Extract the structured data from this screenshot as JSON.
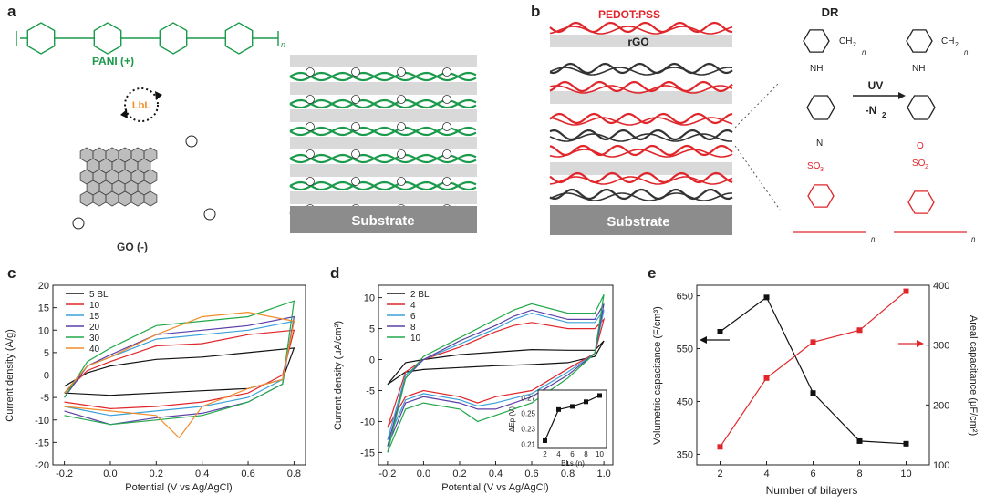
{
  "panels": {
    "a": {
      "letter": "a",
      "pani_label": "PANI (+)",
      "lbl_label": "LbL",
      "go_label": "GO (-)",
      "n_sub": "n",
      "substrate": "Substrate",
      "colors": {
        "pani": "#1a9a4a",
        "go": "#555555",
        "lbl": "#f28c28",
        "sheet": "#d9d9d9",
        "substrate": "#8c8c8c"
      }
    },
    "b": {
      "letter": "b",
      "pedot_label": "PEDOT:PSS",
      "rgo_label": "rGO",
      "dr_label": "DR",
      "nh_label": "NH",
      "uv_label": "UV",
      "n2_label": "-N",
      "n2_sub": "2",
      "o_label": "O",
      "so3_label": "SO",
      "so3_sub": "3",
      "so2_label": "SO",
      "so2_sub": "2",
      "ch2_label": "CH",
      "ch2_sub": "2",
      "n_sub": "n",
      "diazo_label": "N",
      "substrate": "Substrate",
      "colors": {
        "pedot": "#e0262b",
        "dr": "#333333",
        "sheet": "#d9d9d9",
        "substrate": "#8c8c8c"
      }
    }
  },
  "chart_data": [
    {
      "panel": "c",
      "type": "line",
      "xlabel": "Potential (V vs Ag/AgCl)",
      "ylabel": "Current density (A/g)",
      "xlim": [
        -0.25,
        0.85
      ],
      "ylim": [
        -20,
        20
      ],
      "xticks": [
        "-0.2",
        "0.0",
        "0.2",
        "0.4",
        "0.6",
        "0.8"
      ],
      "yticks": [
        "-20",
        "-15",
        "-10",
        "-5",
        "0",
        "5",
        "10",
        "15",
        "20"
      ],
      "legend_position": "top-left",
      "series": [
        {
          "name": "5 BL",
          "color": "#111111",
          "upper": [
            [
              -0.2,
              -2.5
            ],
            [
              -0.1,
              0.5
            ],
            [
              0.0,
              2
            ],
            [
              0.2,
              3.5
            ],
            [
              0.4,
              4
            ],
            [
              0.6,
              5
            ],
            [
              0.8,
              6
            ]
          ],
          "lower": [
            [
              0.8,
              6
            ],
            [
              0.75,
              -1
            ],
            [
              0.6,
              -3
            ],
            [
              0.4,
              -3.5
            ],
            [
              0.2,
              -4
            ],
            [
              0.0,
              -4.5
            ],
            [
              -0.2,
              -4
            ]
          ]
        },
        {
          "name": "10",
          "color": "#e0262b",
          "upper": [
            [
              -0.2,
              -4
            ],
            [
              -0.1,
              1
            ],
            [
              0.0,
              3
            ],
            [
              0.2,
              6.5
            ],
            [
              0.4,
              7
            ],
            [
              0.6,
              9
            ],
            [
              0.8,
              10
            ]
          ],
          "lower": [
            [
              0.8,
              10
            ],
            [
              0.75,
              0
            ],
            [
              0.6,
              -4
            ],
            [
              0.4,
              -6
            ],
            [
              0.2,
              -7
            ],
            [
              0.0,
              -7.5
            ],
            [
              -0.2,
              -6
            ]
          ]
        },
        {
          "name": "15",
          "color": "#3aa0d8",
          "upper": [
            [
              -0.2,
              -4
            ],
            [
              -0.1,
              2
            ],
            [
              0.0,
              4
            ],
            [
              0.2,
              8
            ],
            [
              0.4,
              9
            ],
            [
              0.6,
              10
            ],
            [
              0.8,
              12
            ]
          ],
          "lower": [
            [
              0.8,
              12
            ],
            [
              0.75,
              -1
            ],
            [
              0.6,
              -5
            ],
            [
              0.4,
              -7
            ],
            [
              0.2,
              -8
            ],
            [
              0.0,
              -9
            ],
            [
              -0.2,
              -7
            ]
          ]
        },
        {
          "name": "20",
          "color": "#5b3fa8",
          "upper": [
            [
              -0.2,
              -5
            ],
            [
              -0.1,
              2
            ],
            [
              0.0,
              4.5
            ],
            [
              0.2,
              9
            ],
            [
              0.4,
              10
            ],
            [
              0.6,
              11
            ],
            [
              0.8,
              13
            ]
          ],
          "lower": [
            [
              0.8,
              13
            ],
            [
              0.75,
              -2
            ],
            [
              0.6,
              -6
            ],
            [
              0.4,
              -8.5
            ],
            [
              0.2,
              -9.5
            ],
            [
              0.0,
              -11
            ],
            [
              -0.2,
              -8
            ]
          ]
        },
        {
          "name": "30",
          "color": "#22a84a",
          "upper": [
            [
              -0.2,
              -5
            ],
            [
              -0.1,
              3
            ],
            [
              0.0,
              6
            ],
            [
              0.2,
              11
            ],
            [
              0.4,
              12
            ],
            [
              0.6,
              13
            ],
            [
              0.8,
              16.5
            ]
          ],
          "lower": [
            [
              0.8,
              16.5
            ],
            [
              0.75,
              -2
            ],
            [
              0.6,
              -6
            ],
            [
              0.4,
              -9
            ],
            [
              0.2,
              -10
            ],
            [
              0.0,
              -11
            ],
            [
              -0.2,
              -9
            ]
          ]
        },
        {
          "name": "40",
          "color": "#f28c28",
          "upper": [
            [
              -0.2,
              -4
            ],
            [
              -0.1,
              2
            ],
            [
              0.0,
              4
            ],
            [
              0.2,
              9
            ],
            [
              0.4,
              13
            ],
            [
              0.6,
              14
            ],
            [
              0.8,
              12
            ]
          ],
          "lower": [
            [
              0.8,
              12
            ],
            [
              0.75,
              -1
            ],
            [
              0.6,
              -3
            ],
            [
              0.4,
              -7
            ],
            [
              0.3,
              -14
            ],
            [
              0.2,
              -9
            ],
            [
              0.0,
              -8
            ],
            [
              -0.2,
              -7
            ]
          ]
        }
      ]
    },
    {
      "panel": "d",
      "type": "line",
      "xlabel": "Potential (V vs Ag/AgCl)",
      "ylabel": "Current density (μA/cm²)",
      "xlim": [
        -0.25,
        1.05
      ],
      "ylim": [
        -17,
        12
      ],
      "xticks": [
        "-0.2",
        "0.0",
        "0.2",
        "0.4",
        "0.6",
        "0.8",
        "1.0"
      ],
      "yticks": [
        "-15",
        "-10",
        "-5",
        "0",
        "5",
        "10"
      ],
      "legend_position": "top-left",
      "series": [
        {
          "name": "2 BL",
          "color": "#111111",
          "upper": [
            [
              -0.2,
              -4
            ],
            [
              -0.1,
              -0.5
            ],
            [
              0.0,
              0
            ],
            [
              0.2,
              0.8
            ],
            [
              0.4,
              1.2
            ],
            [
              0.6,
              1.6
            ],
            [
              0.8,
              1.5
            ],
            [
              0.95,
              1.5
            ],
            [
              1.0,
              3
            ]
          ],
          "lower": [
            [
              1.0,
              3
            ],
            [
              0.95,
              0.5
            ],
            [
              0.8,
              -0.5
            ],
            [
              0.6,
              -0.8
            ],
            [
              0.4,
              -1
            ],
            [
              0.2,
              -1.3
            ],
            [
              0.0,
              -1.6
            ],
            [
              -0.1,
              -2
            ],
            [
              -0.2,
              -4
            ]
          ]
        },
        {
          "name": "4",
          "color": "#e0262b",
          "upper": [
            [
              -0.2,
              -11
            ],
            [
              -0.1,
              -2
            ],
            [
              0.0,
              0
            ],
            [
              0.2,
              2
            ],
            [
              0.4,
              4.5
            ],
            [
              0.5,
              5.5
            ],
            [
              0.6,
              6
            ],
            [
              0.8,
              5
            ],
            [
              0.95,
              5
            ],
            [
              1.0,
              6.5
            ]
          ],
          "lower": [
            [
              1.0,
              6.5
            ],
            [
              0.95,
              1
            ],
            [
              0.8,
              -1.5
            ],
            [
              0.6,
              -5
            ],
            [
              0.4,
              -6
            ],
            [
              0.3,
              -7
            ],
            [
              0.2,
              -6
            ],
            [
              0.0,
              -5
            ],
            [
              -0.1,
              -6
            ],
            [
              -0.2,
              -11
            ]
          ]
        },
        {
          "name": "6",
          "color": "#3aa0d8",
          "upper": [
            [
              -0.2,
              -13
            ],
            [
              -0.1,
              -2.5
            ],
            [
              0.0,
              0
            ],
            [
              0.2,
              2.5
            ],
            [
              0.4,
              5
            ],
            [
              0.5,
              6.5
            ],
            [
              0.6,
              7.5
            ],
            [
              0.8,
              6
            ],
            [
              0.95,
              6
            ],
            [
              1.0,
              8
            ]
          ],
          "lower": [
            [
              1.0,
              8
            ],
            [
              0.95,
              1
            ],
            [
              0.8,
              -2
            ],
            [
              0.6,
              -5.5
            ],
            [
              0.4,
              -7
            ],
            [
              0.3,
              -7.5
            ],
            [
              0.2,
              -6.5
            ],
            [
              0.0,
              -5.5
            ],
            [
              -0.1,
              -6.5
            ],
            [
              -0.2,
              -13
            ]
          ]
        },
        {
          "name": "8",
          "color": "#5b3fa8",
          "upper": [
            [
              -0.2,
              -14
            ],
            [
              -0.1,
              -3
            ],
            [
              0.0,
              0
            ],
            [
              0.2,
              3
            ],
            [
              0.4,
              5.5
            ],
            [
              0.5,
              7
            ],
            [
              0.6,
              8
            ],
            [
              0.8,
              6.5
            ],
            [
              0.95,
              6.5
            ],
            [
              1.0,
              9
            ]
          ],
          "lower": [
            [
              1.0,
              9
            ],
            [
              0.95,
              1
            ],
            [
              0.8,
              -2.5
            ],
            [
              0.6,
              -6
            ],
            [
              0.4,
              -8
            ],
            [
              0.3,
              -8
            ],
            [
              0.2,
              -7
            ],
            [
              0.0,
              -6
            ],
            [
              -0.1,
              -7
            ],
            [
              -0.2,
              -14
            ]
          ]
        },
        {
          "name": "10",
          "color": "#22a84a",
          "upper": [
            [
              -0.2,
              -15
            ],
            [
              -0.1,
              -3
            ],
            [
              0.0,
              0.5
            ],
            [
              0.2,
              3.5
            ],
            [
              0.4,
              6.5
            ],
            [
              0.5,
              8
            ],
            [
              0.6,
              9
            ],
            [
              0.8,
              7.5
            ],
            [
              0.95,
              7.5
            ],
            [
              1.0,
              10.5
            ]
          ],
          "lower": [
            [
              1.0,
              10.5
            ],
            [
              0.95,
              1
            ],
            [
              0.8,
              -3
            ],
            [
              0.6,
              -7
            ],
            [
              0.4,
              -9
            ],
            [
              0.3,
              -10
            ],
            [
              0.2,
              -8
            ],
            [
              0.0,
              -7
            ],
            [
              -0.1,
              -8
            ],
            [
              -0.2,
              -15
            ]
          ]
        }
      ],
      "inset": {
        "type": "line",
        "xlabel": "BLs (n)",
        "ylabel": "ΔEp (V)",
        "xlim": [
          1,
          11
        ],
        "ylim": [
          0.205,
          0.28
        ],
        "xticks": [
          "2",
          "4",
          "6",
          "8",
          "10"
        ],
        "yticks": [
          "0.21",
          "0.23",
          "0.25",
          "0.27"
        ],
        "x": [
          2,
          4,
          6,
          8,
          10
        ],
        "y": [
          0.215,
          0.255,
          0.259,
          0.265,
          0.273
        ]
      }
    },
    {
      "panel": "e",
      "type": "line",
      "xlabel": "Number of bilayers",
      "ylabel": "Volumetric capacitance (F/cm³)",
      "ylabel_right": "Areal capacitance (μF/cm²)",
      "xlim": [
        1,
        11
      ],
      "ylim": [
        330,
        670
      ],
      "ylim_right": [
        100,
        400
      ],
      "xticks": [
        "2",
        "4",
        "6",
        "8",
        "10"
      ],
      "yticks": [
        "350",
        "450",
        "550",
        "650"
      ],
      "yticks_right": [
        "100",
        "200",
        "300",
        "400"
      ],
      "x": [
        2,
        4,
        6,
        8,
        10
      ],
      "series": [
        {
          "color": "#111111",
          "axis": "left",
          "values": [
            582,
            647,
            466,
            375,
            370
          ]
        },
        {
          "color": "#e0262b",
          "axis": "right",
          "values": [
            130,
            245,
            305,
            325,
            390
          ]
        }
      ]
    }
  ]
}
